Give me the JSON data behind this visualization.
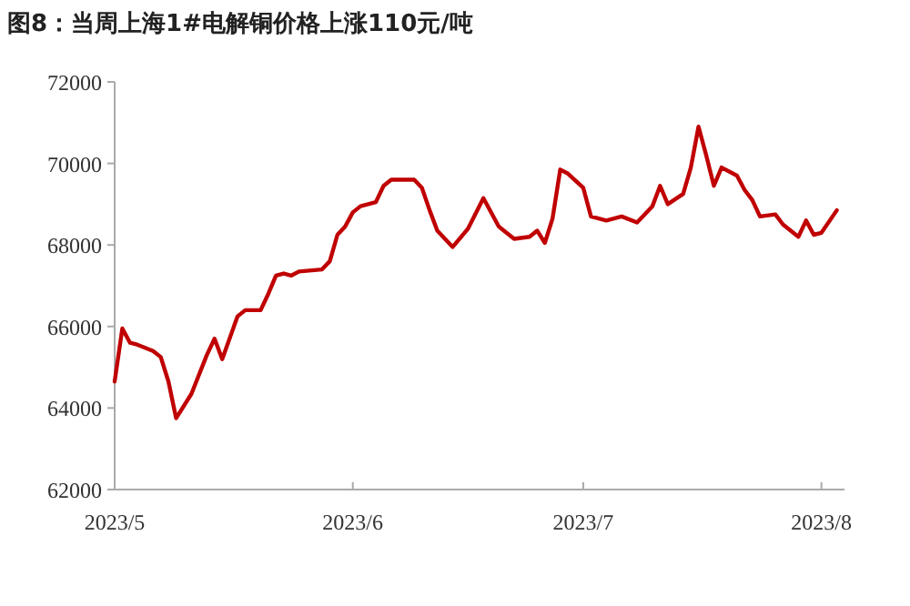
{
  "chart_data": {
    "type": "line",
    "title": "图8：当周上海1#电解铜价格上涨110元/吨",
    "x": [
      "2023-05-01",
      "2023-05-02",
      "2023-05-03",
      "2023-05-04",
      "2023-05-06",
      "2023-05-07",
      "2023-05-08",
      "2023-05-09",
      "2023-05-11",
      "2023-05-13",
      "2023-05-14",
      "2023-05-15",
      "2023-05-17",
      "2023-05-18",
      "2023-05-20",
      "2023-05-21",
      "2023-05-22",
      "2023-05-23",
      "2023-05-24",
      "2023-05-25",
      "2023-05-28",
      "2023-05-29",
      "2023-05-30",
      "2023-05-31",
      "2023-06-01",
      "2023-06-02",
      "2023-06-04",
      "2023-06-05",
      "2023-06-06",
      "2023-06-09",
      "2023-06-10",
      "2023-06-11",
      "2023-06-12",
      "2023-06-14",
      "2023-06-16",
      "2023-06-18",
      "2023-06-20",
      "2023-06-21",
      "2023-06-22",
      "2023-06-24",
      "2023-06-25",
      "2023-06-26",
      "2023-06-27",
      "2023-06-28",
      "2023-06-29",
      "2023-07-01",
      "2023-07-02",
      "2023-07-04",
      "2023-07-06",
      "2023-07-08",
      "2023-07-10",
      "2023-07-11",
      "2023-07-12",
      "2023-07-14",
      "2023-07-15",
      "2023-07-16",
      "2023-07-17",
      "2023-07-18",
      "2023-07-19",
      "2023-07-21",
      "2023-07-22",
      "2023-07-23",
      "2023-07-24",
      "2023-07-26",
      "2023-07-27",
      "2023-07-29",
      "2023-07-30",
      "2023-07-31",
      "2023-08-01",
      "2023-08-03"
    ],
    "series": [
      {
        "color": "#c00000",
        "values": [
          64650,
          65950,
          65600,
          65550,
          65400,
          65250,
          64650,
          63750,
          64350,
          65300,
          65700,
          65200,
          66250,
          66400,
          66400,
          66800,
          67250,
          67300,
          67250,
          67350,
          67400,
          67600,
          68250,
          68450,
          68800,
          68950,
          69050,
          69450,
          69600,
          69600,
          69400,
          68850,
          68350,
          67950,
          68400,
          69150,
          68450,
          68300,
          68150,
          68200,
          68350,
          68050,
          68650,
          69850,
          69750,
          69400,
          68700,
          68600,
          68700,
          68550,
          68950,
          69450,
          69000,
          69250,
          69900,
          70900,
          70200,
          69450,
          69900,
          69700,
          69350,
          69100,
          68700,
          68750,
          68500,
          68200,
          68600,
          68250,
          68300,
          68850
        ]
      }
    ],
    "xlim": [
      "2023-05-01",
      "2023-08-04"
    ],
    "xticks": [
      {
        "value": "2023-05-01",
        "label": "2023/5"
      },
      {
        "value": "2023-06-01",
        "label": "2023/6"
      },
      {
        "value": "2023-07-01",
        "label": "2023/7"
      },
      {
        "value": "2023-08-01",
        "label": "2023/8"
      }
    ],
    "ylim": [
      62000,
      72000
    ],
    "yticks": [
      62000,
      64000,
      66000,
      68000,
      70000,
      72000
    ],
    "line_style": "solid"
  }
}
